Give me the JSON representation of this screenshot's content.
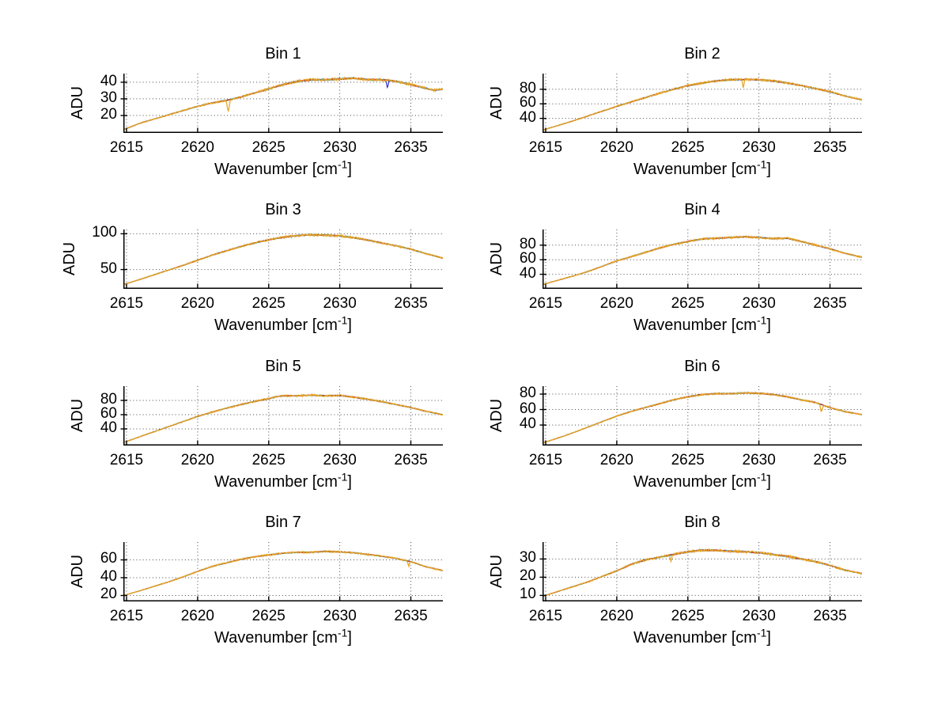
{
  "figure": {
    "background": "#ffffff",
    "ylabel": "ADU",
    "xlabel": {
      "pre": "Wavenumber [cm",
      "sup": "-1",
      "post": "]"
    }
  },
  "colors": {
    "top_line": "#e8a425",
    "under_lines": [
      "#2222cc",
      "#2fa43c",
      "#35b8b8",
      "#c8382a"
    ],
    "axis": "#000000",
    "grid": "#4a4a4a",
    "text": "#000000",
    "background": "#ffffff"
  },
  "chart_data": [
    {
      "type": "line",
      "title": "Bin 1",
      "xlabel": "Wavenumber [cm-1]",
      "ylabel": "ADU",
      "xlim": [
        2614.78,
        2637.25
      ],
      "ylim": [
        9.5,
        45.2
      ],
      "xticks": [
        2615,
        2620,
        2625,
        2630,
        2635
      ],
      "yticks": [
        20,
        30,
        40
      ],
      "noise": 0.8,
      "anchors": [
        [
          2614.8,
          11.5
        ],
        [
          2616,
          15.5
        ],
        [
          2617,
          18
        ],
        [
          2618,
          20.5
        ],
        [
          2619,
          23
        ],
        [
          2620,
          25.5
        ],
        [
          2621,
          27.5
        ],
        [
          2622,
          29
        ],
        [
          2623,
          31
        ],
        [
          2624,
          33.5
        ],
        [
          2625,
          36
        ],
        [
          2626,
          38.5
        ],
        [
          2627,
          40.5
        ],
        [
          2628,
          41.5
        ],
        [
          2629,
          41.5
        ],
        [
          2630,
          42
        ],
        [
          2631,
          42.5
        ],
        [
          2632,
          41.5
        ],
        [
          2633,
          41.5
        ],
        [
          2634,
          40.5
        ],
        [
          2635,
          38.5
        ],
        [
          2636,
          36.5
        ],
        [
          2636.6,
          35.2
        ],
        [
          2637.25,
          35.8
        ]
      ],
      "dips": [
        {
          "x": 2622.15,
          "depth": 7,
          "w": 0.09,
          "series": "top"
        },
        {
          "x": 2633.35,
          "depth": 4.5,
          "w": 0.07,
          "series": 0
        }
      ]
    },
    {
      "type": "line",
      "title": "Bin 2",
      "xlabel": "Wavenumber [cm-1]",
      "ylabel": "ADU",
      "xlim": [
        2614.78,
        2637.25
      ],
      "ylim": [
        20,
        101.5
      ],
      "xticks": [
        2615,
        2620,
        2625,
        2630,
        2635
      ],
      "yticks": [
        40,
        60,
        80
      ],
      "noise": 1.5,
      "anchors": [
        [
          2614.8,
          24
        ],
        [
          2616,
          31
        ],
        [
          2617,
          37
        ],
        [
          2618,
          43.5
        ],
        [
          2619,
          50
        ],
        [
          2620,
          56.5
        ],
        [
          2621,
          62.5
        ],
        [
          2622,
          68.5
        ],
        [
          2623,
          74.5
        ],
        [
          2624,
          80
        ],
        [
          2625,
          85
        ],
        [
          2626,
          88.5
        ],
        [
          2627,
          91.5
        ],
        [
          2628,
          93
        ],
        [
          2629,
          93.5
        ],
        [
          2630,
          93
        ],
        [
          2631,
          91.5
        ],
        [
          2632,
          88.5
        ],
        [
          2633,
          85
        ],
        [
          2634,
          81
        ],
        [
          2635,
          76.5
        ],
        [
          2636,
          71
        ],
        [
          2637.25,
          65.5
        ]
      ],
      "dips": [
        {
          "x": 2628.9,
          "depth": 10,
          "w": 0.07,
          "series": "top"
        }
      ]
    },
    {
      "type": "line",
      "title": "Bin 3",
      "xlabel": "Wavenumber [cm-1]",
      "ylabel": "ADU",
      "xlim": [
        2614.78,
        2637.25
      ],
      "ylim": [
        23,
        106
      ],
      "xticks": [
        2615,
        2620,
        2625,
        2630,
        2635
      ],
      "yticks": [
        50,
        100
      ],
      "noise": 1.5,
      "anchors": [
        [
          2614.8,
          29
        ],
        [
          2616,
          36.5
        ],
        [
          2617,
          43
        ],
        [
          2618,
          49.5
        ],
        [
          2619,
          56
        ],
        [
          2620,
          63
        ],
        [
          2621,
          70
        ],
        [
          2622,
          76
        ],
        [
          2623,
          82
        ],
        [
          2624,
          87
        ],
        [
          2625,
          91.5
        ],
        [
          2626,
          95
        ],
        [
          2627,
          97.5
        ],
        [
          2628,
          98.5
        ],
        [
          2629,
          98
        ],
        [
          2630,
          97
        ],
        [
          2631,
          94.5
        ],
        [
          2632,
          91
        ],
        [
          2633,
          87
        ],
        [
          2634,
          83
        ],
        [
          2635,
          78.5
        ],
        [
          2636,
          72.5
        ],
        [
          2637.25,
          66
        ]
      ],
      "dips": []
    },
    {
      "type": "line",
      "title": "Bin 4",
      "xlabel": "Wavenumber [cm-1]",
      "ylabel": "ADU",
      "xlim": [
        2614.78,
        2637.25
      ],
      "ylim": [
        20,
        101.5
      ],
      "xticks": [
        2615,
        2620,
        2625,
        2630,
        2635
      ],
      "yticks": [
        40,
        60,
        80
      ],
      "noise": 1.4,
      "anchors": [
        [
          2614.8,
          26
        ],
        [
          2616,
          32.5
        ],
        [
          2617,
          38
        ],
        [
          2618,
          44
        ],
        [
          2619,
          51
        ],
        [
          2620,
          58.5
        ],
        [
          2621,
          64
        ],
        [
          2622,
          70
        ],
        [
          2623,
          76
        ],
        [
          2624,
          81
        ],
        [
          2625,
          85
        ],
        [
          2626,
          88.5
        ],
        [
          2627,
          89.5
        ],
        [
          2628,
          90.5
        ],
        [
          2629,
          91.5
        ],
        [
          2630,
          90.5
        ],
        [
          2631,
          89
        ],
        [
          2632,
          89.5
        ],
        [
          2633,
          85
        ],
        [
          2634,
          80
        ],
        [
          2635,
          75
        ],
        [
          2636,
          69
        ],
        [
          2637.25,
          63.5
        ]
      ],
      "dips": []
    },
    {
      "type": "line",
      "title": "Bin 5",
      "xlabel": "Wavenumber [cm-1]",
      "ylabel": "ADU",
      "xlim": [
        2614.78,
        2637.25
      ],
      "ylim": [
        16.7,
        100
      ],
      "xticks": [
        2615,
        2620,
        2625,
        2630,
        2635
      ],
      "yticks": [
        40,
        60,
        80
      ],
      "noise": 1.3,
      "anchors": [
        [
          2614.8,
          21
        ],
        [
          2616,
          29.5
        ],
        [
          2617,
          36.5
        ],
        [
          2618,
          43.5
        ],
        [
          2619,
          50.5
        ],
        [
          2620,
          57.5
        ],
        [
          2621,
          63.5
        ],
        [
          2622,
          69
        ],
        [
          2623,
          74
        ],
        [
          2624,
          78.5
        ],
        [
          2625,
          82.5
        ],
        [
          2625.6,
          85.5
        ],
        [
          2626,
          86.5
        ],
        [
          2627,
          86.5
        ],
        [
          2628,
          87.5
        ],
        [
          2629,
          86.5
        ],
        [
          2630,
          87
        ],
        [
          2631,
          84.5
        ],
        [
          2632,
          81.5
        ],
        [
          2633,
          78
        ],
        [
          2634,
          74
        ],
        [
          2635,
          70
        ],
        [
          2636,
          65
        ],
        [
          2637.25,
          60
        ]
      ],
      "dips": []
    },
    {
      "type": "line",
      "title": "Bin 6",
      "xlabel": "Wavenumber [cm-1]",
      "ylabel": "ADU",
      "xlim": [
        2614.78,
        2637.25
      ],
      "ylim": [
        13.5,
        90.2
      ],
      "xticks": [
        2615,
        2620,
        2625,
        2630,
        2635
      ],
      "yticks": [
        40,
        60,
        80
      ],
      "noise": 1.2,
      "anchors": [
        [
          2614.8,
          17
        ],
        [
          2615.5,
          21
        ],
        [
          2616,
          24
        ],
        [
          2617,
          30.5
        ],
        [
          2618,
          37.5
        ],
        [
          2619,
          44.5
        ],
        [
          2620,
          51.5
        ],
        [
          2621,
          57.5
        ],
        [
          2622,
          62.5
        ],
        [
          2623,
          67.5
        ],
        [
          2624,
          72.5
        ],
        [
          2625,
          76.5
        ],
        [
          2626,
          79.5
        ],
        [
          2627,
          80.5
        ],
        [
          2628,
          80.5
        ],
        [
          2629,
          81.5
        ],
        [
          2630,
          81
        ],
        [
          2631,
          79.5
        ],
        [
          2632,
          76.5
        ],
        [
          2633,
          72.5
        ],
        [
          2634,
          69
        ],
        [
          2635,
          62.5
        ],
        [
          2636,
          57.5
        ],
        [
          2637.25,
          53.5
        ]
      ],
      "dips": [
        {
          "x": 2634.4,
          "depth": 9,
          "w": 0.09,
          "series": "top"
        }
      ]
    },
    {
      "type": "line",
      "title": "Bin 7",
      "xlabel": "Wavenumber [cm-1]",
      "ylabel": "ADU",
      "xlim": [
        2614.78,
        2637.25
      ],
      "ylim": [
        13.3,
        80
      ],
      "xticks": [
        2615,
        2620,
        2625,
        2630,
        2635
      ],
      "yticks": [
        20,
        40,
        60
      ],
      "noise": 1.0,
      "anchors": [
        [
          2614.8,
          20
        ],
        [
          2616,
          25.5
        ],
        [
          2617,
          30.5
        ],
        [
          2618,
          35.5
        ],
        [
          2619,
          41
        ],
        [
          2620,
          47
        ],
        [
          2621,
          52.5
        ],
        [
          2622,
          56.5
        ],
        [
          2623,
          60.5
        ],
        [
          2624,
          63.5
        ],
        [
          2625,
          65.5
        ],
        [
          2626,
          67.5
        ],
        [
          2627,
          68.5
        ],
        [
          2628,
          68.5
        ],
        [
          2629,
          69.5
        ],
        [
          2630,
          69
        ],
        [
          2631,
          68
        ],
        [
          2632,
          66
        ],
        [
          2633,
          64
        ],
        [
          2634,
          61.5
        ],
        [
          2635,
          58
        ],
        [
          2636,
          52.5
        ],
        [
          2637.25,
          48
        ]
      ],
      "dips": [
        {
          "x": 2634.85,
          "depth": 5,
          "w": 0.07,
          "series": "top"
        }
      ]
    },
    {
      "type": "line",
      "title": "Bin 8",
      "xlabel": "Wavenumber [cm-1]",
      "ylabel": "ADU",
      "xlim": [
        2614.78,
        2637.25
      ],
      "ylim": [
        6.7,
        39.3
      ],
      "xticks": [
        2615,
        2620,
        2625,
        2630,
        2635
      ],
      "yticks": [
        10,
        20,
        30
      ],
      "noise": 0.7,
      "anchors": [
        [
          2614.8,
          9.5
        ],
        [
          2616,
          12.5
        ],
        [
          2617,
          15
        ],
        [
          2618,
          17.5
        ],
        [
          2619,
          20.5
        ],
        [
          2620,
          23.5
        ],
        [
          2621,
          27
        ],
        [
          2622,
          29.5
        ],
        [
          2623,
          31
        ],
        [
          2624,
          32.5
        ],
        [
          2625,
          34
        ],
        [
          2626,
          34.8
        ],
        [
          2627,
          34.8
        ],
        [
          2628,
          34.3
        ],
        [
          2629,
          34
        ],
        [
          2630,
          33.5
        ],
        [
          2631,
          32.5
        ],
        [
          2632,
          31.5
        ],
        [
          2633,
          30
        ],
        [
          2634,
          28.5
        ],
        [
          2635,
          26.5
        ],
        [
          2636,
          24
        ],
        [
          2637.25,
          22
        ]
      ],
      "dips": [
        {
          "x": 2623.8,
          "depth": 3.5,
          "w": 0.07,
          "series": "top"
        }
      ]
    }
  ]
}
